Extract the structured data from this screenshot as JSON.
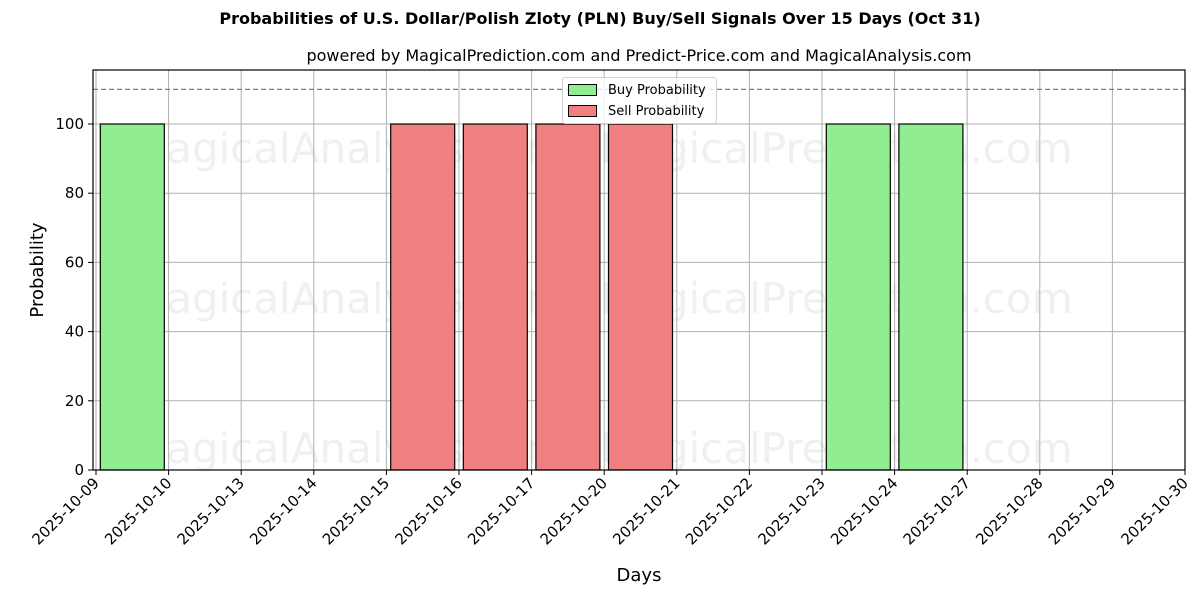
{
  "title": "Probabilities of U.S. Dollar/Polish Zloty (PLN) Buy/Sell Signals Over 15 Days (Oct 31)",
  "subtitle": "powered by MagicalPrediction.com and Predict-Price.com and MagicalAnalysis.com",
  "watermarks": [
    "MagicalAnalysis.com",
    "MagicalPrediction.com"
  ],
  "legend": {
    "buy": "Buy Probability",
    "sell": "Sell Probability"
  },
  "colors": {
    "buy": "#90ee90",
    "sell": "#f08080",
    "grid": "#b0b0b0",
    "threshold": "#808080"
  },
  "chart_data": {
    "type": "bar",
    "title": "Probabilities of U.S. Dollar/Polish Zloty (PLN) Buy/Sell Signals Over 15 Days (Oct 31)",
    "subtitle": "powered by MagicalPrediction.com and Predict-Price.com and MagicalAnalysis.com",
    "xlabel": "Days",
    "ylabel": "Probability",
    "ylim": [
      0,
      116
    ],
    "yticks": [
      0,
      20,
      40,
      60,
      80,
      100
    ],
    "categories": [
      "2025-10-09",
      "2025-10-10",
      "2025-10-13",
      "2025-10-14",
      "2025-10-15",
      "2025-10-16",
      "2025-10-17",
      "2025-10-20",
      "2025-10-21",
      "2025-10-22",
      "2025-10-23",
      "2025-10-24",
      "2025-10-27",
      "2025-10-28",
      "2025-10-29",
      "2025-10-30"
    ],
    "series": [
      {
        "name": "Buy Probability",
        "color": "#90ee90",
        "values": [
          0,
          100,
          0,
          0,
          0,
          0,
          0,
          0,
          0,
          0,
          0,
          100,
          100,
          0,
          0,
          0
        ]
      },
      {
        "name": "Sell Probability",
        "color": "#f08080",
        "values": [
          0,
          0,
          0,
          0,
          0,
          100,
          100,
          100,
          100,
          0,
          0,
          0,
          0,
          0,
          0,
          0
        ]
      }
    ],
    "bars": [
      {
        "type": "buy",
        "x_center": 0.5
      },
      {
        "type": "sell",
        "x_center": 4.5
      },
      {
        "type": "sell",
        "x_center": 5.5
      },
      {
        "type": "sell",
        "x_center": 6.5
      },
      {
        "type": "sell",
        "x_center": 7.5
      },
      {
        "type": "buy",
        "x_center": 10.5
      },
      {
        "type": "buy",
        "x_center": 11.5
      }
    ],
    "threshold_line": 110,
    "grid": true,
    "legend_position": "upper center"
  }
}
